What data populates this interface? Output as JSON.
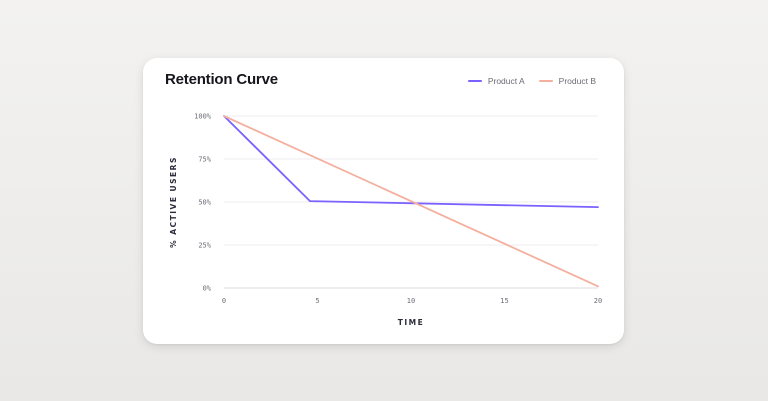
{
  "chart_data": {
    "type": "line",
    "title": "Retention Curve",
    "xlabel": "TIME",
    "ylabel": "% ACTIVE USERS",
    "xlim": [
      0,
      20
    ],
    "ylim": [
      0,
      100
    ],
    "x_ticks": [
      0,
      5,
      10,
      15,
      20
    ],
    "y_ticks": [
      0,
      25,
      50,
      75,
      100
    ],
    "y_tick_labels": [
      "0%",
      "25%",
      "50%",
      "75%",
      "100%"
    ],
    "grid": true,
    "legend_position": "top-right",
    "series": [
      {
        "name": "Product A",
        "color": "#7b61ff",
        "x": [
          0,
          4.6,
          20
        ],
        "y": [
          100,
          50.5,
          47
        ]
      },
      {
        "name": "Product B",
        "color": "#f4b09e",
        "x": [
          0,
          20
        ],
        "y": [
          100,
          1
        ]
      }
    ]
  }
}
